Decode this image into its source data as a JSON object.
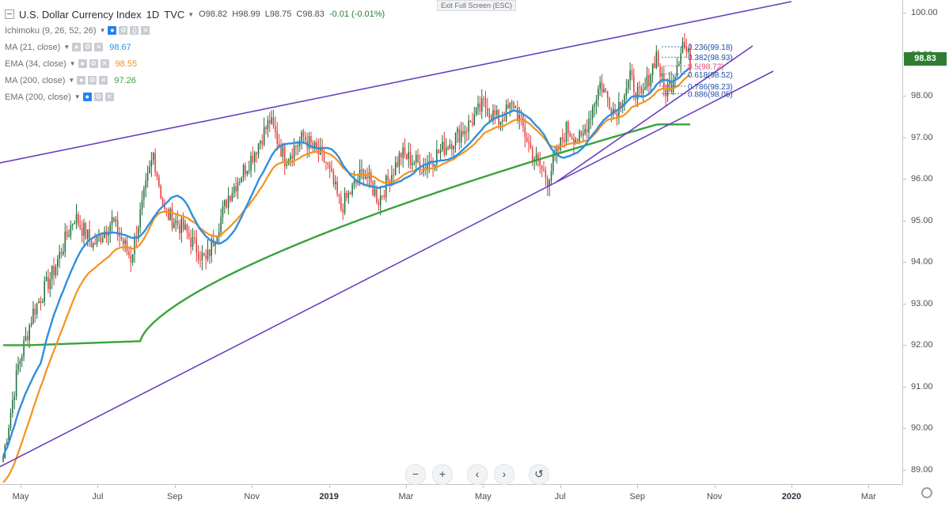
{
  "header": {
    "exit_fullscreen": "Exit Full Screen (ESC)",
    "symbol_title": "U.S. Dollar Currency Index",
    "interval": "1D",
    "exchange": "TVC",
    "ohlc": {
      "open": "O98.82",
      "high": "H98.99",
      "low": "L98.75",
      "close": "C98.83",
      "change": "-0.01 (-0.01%)"
    }
  },
  "indicators": [
    {
      "name": "Ichimoku (9, 26, 52, 26)",
      "value": "",
      "color": "#9aa0a8"
    },
    {
      "name": "MA (21, close)",
      "value": "98.67",
      "color": "#2f8fde"
    },
    {
      "name": "EMA (34, close)",
      "value": "98.55",
      "color": "#f5921e"
    },
    {
      "name": "MA (200, close)",
      "value": "97.26",
      "color": "#38a33a"
    },
    {
      "name": "EMA (200, close)",
      "value": "",
      "color": "#9aa0a8"
    }
  ],
  "last_price": "98.83",
  "controls": {
    "zoom_out": "−",
    "zoom_in": "+",
    "scroll_left": "‹",
    "scroll_right": "›",
    "reset": "↺"
  },
  "colors": {
    "up": "#1e6b3a",
    "down": "#e53935",
    "trendline": "#6a3fbf",
    "ma21": "#2f8fde",
    "ema34": "#f5921e",
    "ma200": "#38a33a",
    "badge": "#2e7d32"
  },
  "chart_data": {
    "type": "candlestick",
    "title": "U.S. Dollar Currency Index",
    "y_range": [
      88.8,
      100.2
    ],
    "y_ticks": [
      "100.00",
      "99.00",
      "98.00",
      "97.00",
      "96.00",
      "95.00",
      "94.00",
      "93.00",
      "92.00",
      "91.00",
      "90.00",
      "89.00"
    ],
    "x_ticks": [
      "May",
      "Jul",
      "Sep",
      "Nov",
      "2019",
      "Mar",
      "May",
      "Jul",
      "Sep",
      "Nov",
      "2020",
      "Mar"
    ],
    "x_major": [
      "2019",
      "2020"
    ],
    "fibonacci": [
      {
        "label": "0.236(99.18)",
        "value": 99.18,
        "color": "#1e4fa8"
      },
      {
        "label": "0.382(98.93)",
        "value": 98.93,
        "color": "#1e4fa8"
      },
      {
        "label": "0.5(98.72)",
        "value": 98.72,
        "color": "#e0457b"
      },
      {
        "label": "0.618(98.52)",
        "value": 98.52,
        "color": "#1e4fa8"
      },
      {
        "label": "0.786(98.23)",
        "value": 98.23,
        "color": "#1e4fa8"
      },
      {
        "label": "0.886(98.05)",
        "value": 98.05,
        "color": "#1e4fa8"
      }
    ],
    "price_anchors": [
      {
        "t": 0,
        "v": 89.3
      },
      {
        "t": 8,
        "v": 91.5
      },
      {
        "t": 16,
        "v": 92.8
      },
      {
        "t": 26,
        "v": 93.7
      },
      {
        "t": 38,
        "v": 95.1
      },
      {
        "t": 48,
        "v": 94.4
      },
      {
        "t": 58,
        "v": 95.0
      },
      {
        "t": 68,
        "v": 94.1
      },
      {
        "t": 80,
        "v": 96.6
      },
      {
        "t": 86,
        "v": 95.2
      },
      {
        "t": 96,
        "v": 94.8
      },
      {
        "t": 108,
        "v": 94.0
      },
      {
        "t": 120,
        "v": 95.6
      },
      {
        "t": 132,
        "v": 96.5
      },
      {
        "t": 142,
        "v": 97.4
      },
      {
        "t": 150,
        "v": 96.5
      },
      {
        "t": 160,
        "v": 97.0
      },
      {
        "t": 172,
        "v": 96.4
      },
      {
        "t": 180,
        "v": 95.3
      },
      {
        "t": 192,
        "v": 96.2
      },
      {
        "t": 200,
        "v": 95.5
      },
      {
        "t": 212,
        "v": 96.6
      },
      {
        "t": 224,
        "v": 96.3
      },
      {
        "t": 236,
        "v": 96.8
      },
      {
        "t": 248,
        "v": 97.3
      },
      {
        "t": 256,
        "v": 97.8
      },
      {
        "t": 264,
        "v": 97.4
      },
      {
        "t": 272,
        "v": 97.8
      },
      {
        "t": 282,
        "v": 96.6
      },
      {
        "t": 290,
        "v": 96.0
      },
      {
        "t": 300,
        "v": 97.2
      },
      {
        "t": 308,
        "v": 96.9
      },
      {
        "t": 318,
        "v": 98.3
      },
      {
        "t": 326,
        "v": 97.6
      },
      {
        "t": 334,
        "v": 98.4
      },
      {
        "t": 340,
        "v": 97.9
      },
      {
        "t": 348,
        "v": 99.0
      },
      {
        "t": 352,
        "v": 98.1
      },
      {
        "t": 356,
        "v": 98.3
      },
      {
        "t": 362,
        "v": 99.3
      },
      {
        "t": 366,
        "v": 98.8
      }
    ],
    "ma21_value": 98.67,
    "ema34_value": 98.55,
    "ma200_value": 97.26
  }
}
